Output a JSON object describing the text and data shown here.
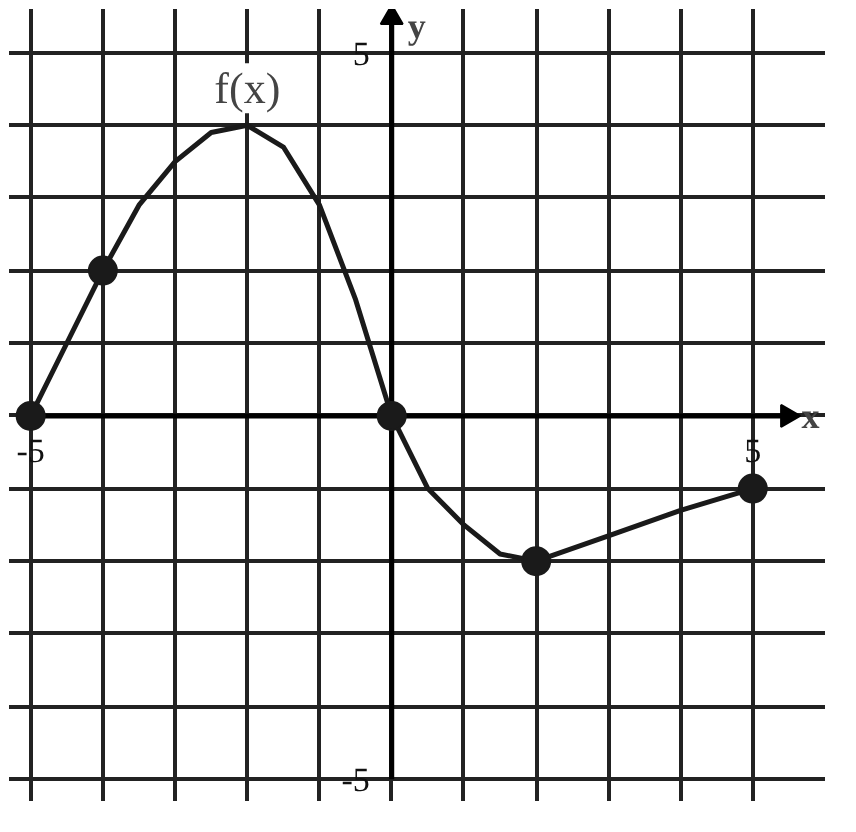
{
  "chart_data": {
    "type": "line",
    "xlabel": "x",
    "ylabel": "y",
    "xlim": [
      -5,
      5
    ],
    "ylim": [
      -5,
      5
    ],
    "xticks": [
      {
        "value": -5,
        "label": "-5"
      },
      {
        "value": -4,
        "label": null
      },
      {
        "value": -3,
        "label": null
      },
      {
        "value": -2,
        "label": null
      },
      {
        "value": -1,
        "label": null
      },
      {
        "value": 0,
        "label": null
      },
      {
        "value": 1,
        "label": null
      },
      {
        "value": 2,
        "label": null
      },
      {
        "value": 3,
        "label": null
      },
      {
        "value": 4,
        "label": null
      },
      {
        "value": 5,
        "label": "5"
      }
    ],
    "yticks": [
      {
        "value": -5,
        "label": "-5"
      },
      {
        "value": -4,
        "label": null
      },
      {
        "value": -3,
        "label": null
      },
      {
        "value": -2,
        "label": null
      },
      {
        "value": -1,
        "label": null
      },
      {
        "value": 0,
        "label": null
      },
      {
        "value": 1,
        "label": null
      },
      {
        "value": 2,
        "label": null
      },
      {
        "value": 3,
        "label": null
      },
      {
        "value": 4,
        "label": null
      },
      {
        "value": 5,
        "label": "5"
      }
    ],
    "grid": true,
    "series": [
      {
        "name": "f(x)",
        "color": "#1a1a1a",
        "marker": "none",
        "x": [
          -5,
          -4.5,
          -4,
          -3.5,
          -3,
          -2.5,
          -2,
          -1.5,
          -1,
          -0.5,
          0,
          0.5,
          1,
          1.5,
          2,
          3,
          4,
          5
        ],
        "values": [
          0,
          1,
          2,
          2.9,
          3.5,
          3.9,
          4,
          3.7,
          2.9,
          1.6,
          0,
          -1,
          -1.5,
          -1.9,
          -2,
          -1.65,
          -1.3,
          -1
        ]
      },
      {
        "type": "scatter",
        "color": "#1a1a1a",
        "marker": "circle",
        "x": [
          -5,
          -4,
          0,
          2,
          5
        ],
        "values": [
          0,
          2,
          0,
          -2,
          -1
        ]
      }
    ]
  }
}
